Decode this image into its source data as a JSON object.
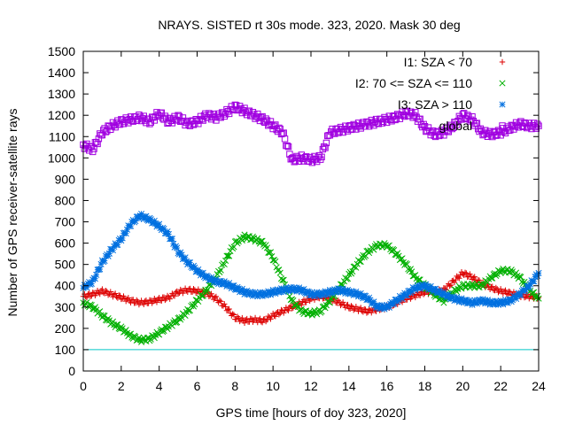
{
  "chart_data": {
    "type": "scatter",
    "title": "NRAYS. SISTED rt 30s mode. 323, 2020. Mask 30 deg",
    "xlabel": "GPS time [hours of doy 323, 2020]",
    "ylabel": "Number of GPS receiver-satellite rays",
    "xlim": [
      0,
      24
    ],
    "ylim": [
      0,
      1500
    ],
    "xticks": [
      0,
      2,
      4,
      6,
      8,
      10,
      12,
      14,
      16,
      18,
      20,
      22,
      24
    ],
    "yticks": [
      0,
      100,
      200,
      300,
      400,
      500,
      600,
      700,
      800,
      900,
      1000,
      1100,
      1200,
      1300,
      1400,
      1500
    ],
    "legend_position": "top-right",
    "threshold_line": {
      "y": 100,
      "color": "#00c8c8"
    },
    "series": [
      {
        "name": "I1: SZA < 70",
        "marker": "plus",
        "color": "#dd0000",
        "x": [
          0,
          0.5,
          1,
          1.5,
          2,
          2.5,
          3,
          3.5,
          4,
          4.5,
          5,
          5.5,
          6,
          6.5,
          7,
          7.5,
          8,
          8.5,
          9,
          9.5,
          10,
          10.5,
          11,
          11.5,
          12,
          12.5,
          13,
          13.5,
          14,
          14.5,
          15,
          15.5,
          16,
          16.5,
          17,
          17.5,
          18,
          18.5,
          19,
          19.5,
          20,
          20.5,
          21,
          21.5,
          22,
          22.5,
          23,
          23.5,
          24
        ],
        "y": [
          350,
          360,
          375,
          360,
          345,
          330,
          320,
          325,
          335,
          345,
          370,
          380,
          375,
          365,
          340,
          300,
          250,
          235,
          240,
          235,
          260,
          280,
          300,
          320,
          340,
          350,
          340,
          320,
          300,
          290,
          280,
          290,
          300,
          320,
          340,
          355,
          370,
          370,
          380,
          420,
          460,
          440,
          410,
          390,
          375,
          365,
          355,
          350,
          345
        ]
      },
      {
        "name": "I2: 70 <= SZA <= 110",
        "marker": "cross",
        "color": "#00b000",
        "x": [
          0,
          0.5,
          1,
          1.5,
          2,
          2.5,
          3,
          3.5,
          4,
          4.5,
          5,
          5.5,
          6,
          6.5,
          7,
          7.5,
          8,
          8.5,
          9,
          9.5,
          10,
          10.5,
          11,
          11.5,
          12,
          12.5,
          13,
          13.5,
          14,
          14.5,
          15,
          15.5,
          16,
          16.5,
          17,
          17.5,
          18,
          18.5,
          19,
          19.5,
          20,
          20.5,
          21,
          21.5,
          22,
          22.5,
          23,
          23.5,
          24
        ],
        "y": [
          320,
          300,
          260,
          225,
          200,
          165,
          145,
          150,
          180,
          210,
          240,
          280,
          330,
          380,
          440,
          520,
          600,
          630,
          620,
          600,
          530,
          430,
          330,
          280,
          270,
          280,
          330,
          390,
          450,
          510,
          560,
          590,
          590,
          550,
          500,
          440,
          400,
          360,
          330,
          370,
          400,
          400,
          400,
          440,
          470,
          470,
          440,
          380,
          340
        ]
      },
      {
        "name": "I3: SZA > 110",
        "marker": "star",
        "color": "#0070e0",
        "x": [
          0,
          0.5,
          1,
          1.5,
          2,
          2.5,
          3,
          3.5,
          4,
          4.5,
          5,
          5.5,
          6,
          6.5,
          7,
          7.5,
          8,
          8.5,
          9,
          9.5,
          10,
          10.5,
          11,
          11.5,
          12,
          12.5,
          13,
          13.5,
          14,
          14.5,
          15,
          15.5,
          16,
          16.5,
          17,
          17.5,
          18,
          18.5,
          19,
          19.5,
          20,
          20.5,
          21,
          21.5,
          22,
          22.5,
          23,
          23.5,
          24
        ],
        "y": [
          390,
          420,
          510,
          570,
          620,
          690,
          730,
          710,
          680,
          640,
          560,
          510,
          470,
          440,
          420,
          410,
          390,
          370,
          360,
          360,
          370,
          380,
          385,
          380,
          360,
          360,
          370,
          380,
          370,
          360,
          340,
          300,
          300,
          330,
          360,
          390,
          400,
          380,
          360,
          340,
          330,
          320,
          330,
          320,
          320,
          330,
          360,
          400,
          460
        ]
      },
      {
        "name": "global",
        "marker": "square",
        "color": "#a000e0",
        "x": [
          0,
          0.5,
          1,
          1.5,
          2,
          2.5,
          3,
          3.5,
          4,
          4.5,
          5,
          5.5,
          6,
          6.5,
          7,
          7.5,
          8,
          8.5,
          9,
          9.5,
          10,
          10.5,
          11,
          11.5,
          12,
          12.5,
          13,
          13.5,
          14,
          14.5,
          15,
          15.5,
          16,
          16.5,
          17,
          17.5,
          18,
          18.5,
          19,
          19.5,
          20,
          20.5,
          21,
          21.5,
          22,
          22.5,
          23,
          23.5,
          24
        ],
        "y": [
          1060,
          1040,
          1120,
          1150,
          1170,
          1180,
          1190,
          1170,
          1210,
          1170,
          1190,
          1160,
          1170,
          1200,
          1190,
          1210,
          1240,
          1220,
          1200,
          1180,
          1150,
          1120,
          990,
          1000,
          990,
          1000,
          1120,
          1130,
          1140,
          1150,
          1160,
          1170,
          1180,
          1190,
          1210,
          1200,
          1140,
          1110,
          1120,
          1150,
          1200,
          1180,
          1120,
          1110,
          1120,
          1140,
          1160,
          1150,
          1150
        ]
      }
    ]
  }
}
